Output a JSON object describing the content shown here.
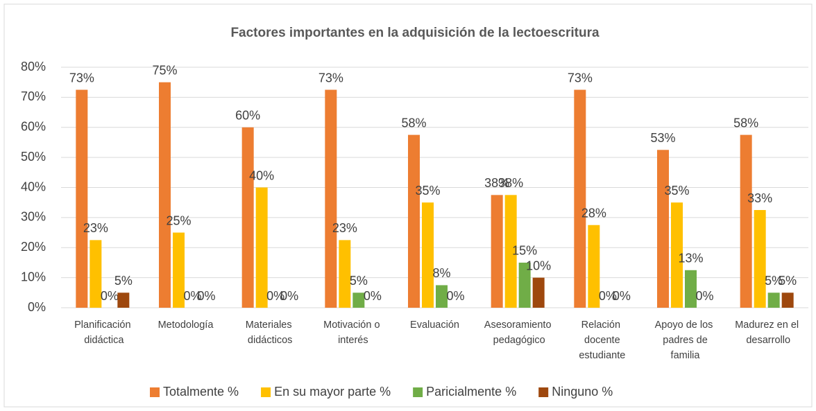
{
  "chart_data": {
    "type": "bar",
    "title": "Factores importantes en la adquisición de la lectoescritura",
    "categories": [
      "Planificación didáctica",
      "Metodología",
      "Materiales didácticos",
      "Motivación o interés",
      "Evaluación",
      "Asesoramiento pedagógico",
      "Relación docente estudiante",
      "Apoyo de los padres de familia",
      "Madurez en el desarrollo"
    ],
    "series": [
      {
        "name": "Totalmente %",
        "color": "#ed7d31",
        "values": [
          72.5,
          75,
          60,
          72.5,
          57.5,
          37.5,
          72.5,
          52.5,
          57.5
        ],
        "value_labels": [
          "73%",
          "75%",
          "60%",
          "73%",
          "58%",
          "38%",
          "73%",
          "53%",
          "58%"
        ]
      },
      {
        "name": "En su mayor parte %",
        "color": "#ffc000",
        "values": [
          22.5,
          25,
          40,
          22.5,
          35,
          37.5,
          27.5,
          35,
          32.5
        ],
        "value_labels": [
          "23%",
          "25%",
          "40%",
          "23%",
          "35%",
          "38%",
          "28%",
          "35%",
          "33%"
        ]
      },
      {
        "name": "Paricialmente %",
        "color": "#70ad47",
        "values": [
          0,
          0,
          0,
          5,
          7.5,
          15,
          0,
          12.5,
          5
        ],
        "value_labels": [
          "0%",
          "0%",
          "0%",
          "5%",
          "8%",
          "15%",
          "0%",
          "13%",
          "5%"
        ]
      },
      {
        "name": "Ninguno %",
        "color": "#9e480e",
        "values": [
          5,
          0,
          0,
          0,
          0,
          10,
          0,
          0,
          5
        ],
        "value_labels": [
          "5%",
          "0%",
          "0%",
          "0%",
          "0%",
          "10%",
          "0%",
          "0%",
          "5%"
        ]
      }
    ],
    "ylim": [
      0,
      80
    ],
    "yticks": [
      {
        "value": 0,
        "label": "0%"
      },
      {
        "value": 10,
        "label": "10%"
      },
      {
        "value": 20,
        "label": "20%"
      },
      {
        "value": 30,
        "label": "30%"
      },
      {
        "value": 40,
        "label": "40%"
      },
      {
        "value": 50,
        "label": "50%"
      },
      {
        "value": 60,
        "label": "60%"
      },
      {
        "value": 70,
        "label": "70%"
      },
      {
        "value": 80,
        "label": "80%"
      }
    ],
    "grid": true,
    "legend": "bottom"
  }
}
